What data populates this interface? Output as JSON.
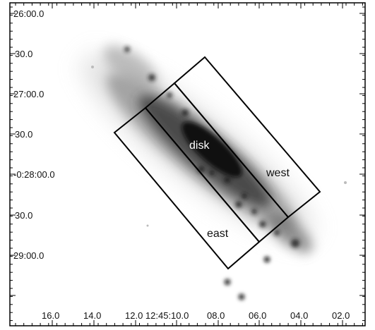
{
  "image": {
    "subject": "spiral galaxy image (grayscale negative)",
    "frame_color": "#000000",
    "background_color": "#ffffff",
    "colormap": "inverted grayscale"
  },
  "axes": {
    "dec_ticks": [
      "26:00.0",
      "30.0",
      "27:00.0",
      "30.0",
      "-0:28:00.0",
      "30.0",
      "29:00.0"
    ],
    "ra_ticks": [
      "16.0",
      "14.0",
      "12.0 12:45:10.0",
      "08.0",
      "06.0",
      "04.0",
      "02.0"
    ]
  },
  "regions": [
    {
      "label": "disk",
      "color": "#000000"
    },
    {
      "label": "west",
      "color": "#000000"
    },
    {
      "label": "east",
      "color": "#000000"
    }
  ]
}
